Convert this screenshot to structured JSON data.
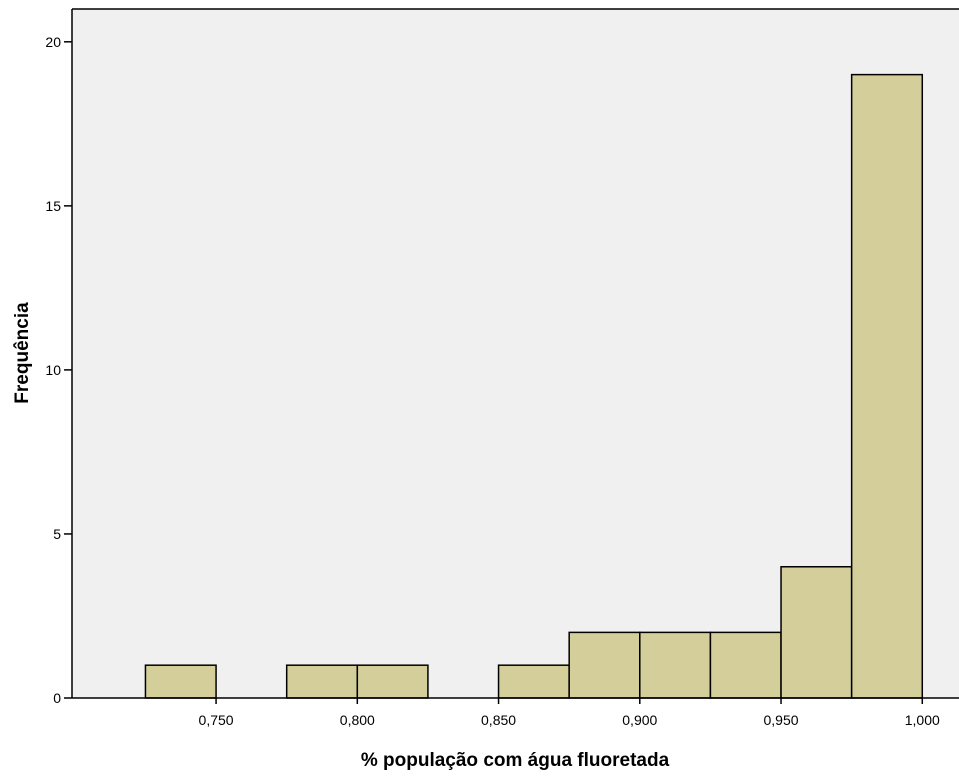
{
  "chart_data": {
    "type": "bar",
    "chart_kind": "histogram",
    "xlabel": "% população com água fluoretada",
    "ylabel": "Frequência",
    "bin_width": 0.025,
    "bins": [
      {
        "start": 0.725,
        "end": 0.75,
        "count": 1
      },
      {
        "start": 0.75,
        "end": 0.775,
        "count": 0
      },
      {
        "start": 0.775,
        "end": 0.8,
        "count": 1
      },
      {
        "start": 0.8,
        "end": 0.825,
        "count": 1
      },
      {
        "start": 0.825,
        "end": 0.85,
        "count": 0
      },
      {
        "start": 0.85,
        "end": 0.875,
        "count": 1
      },
      {
        "start": 0.875,
        "end": 0.9,
        "count": 2
      },
      {
        "start": 0.9,
        "end": 0.925,
        "count": 2
      },
      {
        "start": 0.925,
        "end": 0.95,
        "count": 2
      },
      {
        "start": 0.95,
        "end": 0.975,
        "count": 4
      },
      {
        "start": 0.975,
        "end": 1.0,
        "count": 19
      }
    ],
    "xlim": [
      0.699,
      1.013
    ],
    "ylim": [
      0,
      21
    ],
    "x_ticks": [
      0.75,
      0.8,
      0.85,
      0.9,
      0.95,
      1.0
    ],
    "x_tick_labels": [
      "0,750",
      "0,800",
      "0,850",
      "0,900",
      "0,950",
      "1,000"
    ],
    "y_ticks": [
      0,
      5,
      10,
      15,
      20
    ],
    "y_tick_labels": [
      "0",
      "5",
      "10",
      "15",
      "20"
    ],
    "grid": false,
    "legend": "none",
    "colors": {
      "bar_fill": "#d3ce9a",
      "bar_stroke": "#000000",
      "plot_background": "#f0f0f0"
    }
  }
}
